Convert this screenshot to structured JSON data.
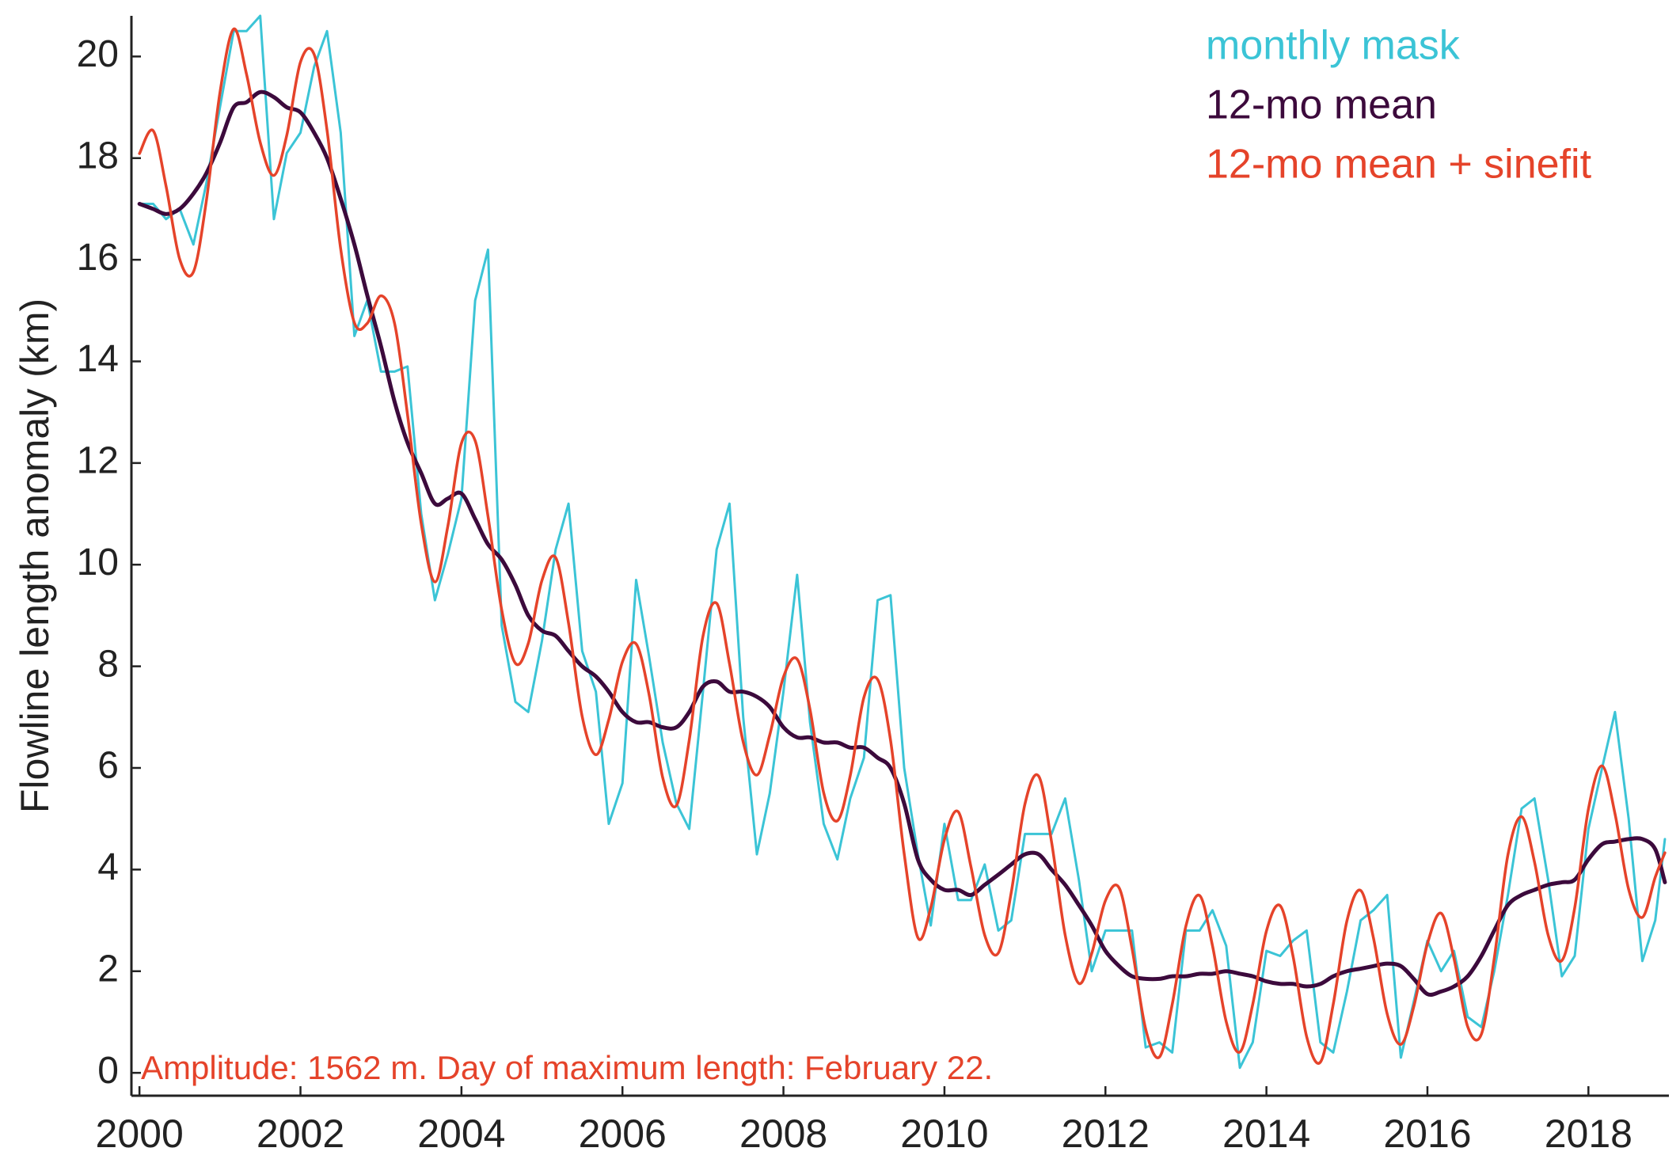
{
  "chart_data": {
    "type": "line",
    "ylabel": "Flowline length anomaly (km)",
    "annotation": "Amplitude: 1562 m. Day of maximum length: February 22.",
    "annotation_color": "#e5432a",
    "legend": "upper right",
    "grid": false,
    "xlim": [
      1999.9,
      2019.0
    ],
    "ylim": [
      -0.45,
      20.8
    ],
    "xticks": [
      2000,
      2002,
      2004,
      2006,
      2008,
      2010,
      2012,
      2014,
      2016,
      2018
    ],
    "yticks": [
      0,
      2,
      4,
      6,
      8,
      10,
      12,
      14,
      16,
      18,
      20
    ],
    "x": [
      2000,
      2000.17,
      2000.33,
      2000.5,
      2000.67,
      2000.83,
      2001,
      2001.17,
      2001.33,
      2001.5,
      2001.67,
      2001.83,
      2002,
      2002.17,
      2002.33,
      2002.5,
      2002.67,
      2002.83,
      2003,
      2003.17,
      2003.33,
      2003.5,
      2003.67,
      2003.83,
      2004,
      2004.17,
      2004.33,
      2004.5,
      2004.67,
      2004.83,
      2005,
      2005.17,
      2005.33,
      2005.5,
      2005.67,
      2005.83,
      2006,
      2006.17,
      2006.33,
      2006.5,
      2006.67,
      2006.83,
      2007,
      2007.17,
      2007.33,
      2007.5,
      2007.67,
      2007.83,
      2008,
      2008.17,
      2008.33,
      2008.5,
      2008.67,
      2008.83,
      2009,
      2009.17,
      2009.33,
      2009.5,
      2009.67,
      2009.83,
      2010,
      2010.17,
      2010.33,
      2010.5,
      2010.67,
      2010.83,
      2011,
      2011.17,
      2011.33,
      2011.5,
      2011.67,
      2011.83,
      2012,
      2012.17,
      2012.33,
      2012.5,
      2012.67,
      2012.83,
      2013,
      2013.17,
      2013.33,
      2013.5,
      2013.67,
      2013.83,
      2014,
      2014.17,
      2014.33,
      2014.5,
      2014.67,
      2014.83,
      2015,
      2015.17,
      2015.33,
      2015.5,
      2015.67,
      2015.83,
      2016,
      2016.17,
      2016.33,
      2016.5,
      2016.67,
      2016.83,
      2017,
      2017.17,
      2017.33,
      2017.5,
      2017.67,
      2017.83,
      2018,
      2018.17,
      2018.33,
      2018.5,
      2018.67,
      2018.83,
      2018.95
    ],
    "series": [
      {
        "name": "monthly mask",
        "color": "#3bc4d6",
        "width": 3,
        "smooth": false,
        "values": [
          17.1,
          17.1,
          16.8,
          17.0,
          16.3,
          17.5,
          19.0,
          20.5,
          20.5,
          20.8,
          16.8,
          18.1,
          18.5,
          19.8,
          20.5,
          18.5,
          14.5,
          15.2,
          13.8,
          13.8,
          13.9,
          11.0,
          9.3,
          10.2,
          11.3,
          15.2,
          16.2,
          8.8,
          7.3,
          7.1,
          8.5,
          10.3,
          11.2,
          8.3,
          7.5,
          4.9,
          5.7,
          9.7,
          8.2,
          6.5,
          5.3,
          4.8,
          7.5,
          10.3,
          11.2,
          7.0,
          4.3,
          5.5,
          7.5,
          9.8,
          6.9,
          4.9,
          4.2,
          5.4,
          6.2,
          9.3,
          9.4,
          6.0,
          4.3,
          2.9,
          4.9,
          3.4,
          3.4,
          4.1,
          2.8,
          3.0,
          4.7,
          4.7,
          4.7,
          5.4,
          3.8,
          2.0,
          2.8,
          2.8,
          2.8,
          0.5,
          0.6,
          0.4,
          2.8,
          2.8,
          3.2,
          2.5,
          0.1,
          0.6,
          2.4,
          2.3,
          2.6,
          2.8,
          0.6,
          0.4,
          1.6,
          3.0,
          3.2,
          3.5,
          0.3,
          1.4,
          2.6,
          2.0,
          2.4,
          1.1,
          0.9,
          2.0,
          3.5,
          5.2,
          5.4,
          3.8,
          1.9,
          2.3,
          4.8,
          6.0,
          7.1,
          5.0,
          2.2,
          3.0,
          4.6
        ]
      },
      {
        "name": "12-mo mean",
        "color": "#3c0a3c",
        "width": 5,
        "smooth": true,
        "values": [
          17.1,
          17.0,
          16.9,
          17.0,
          17.3,
          17.7,
          18.3,
          19.0,
          19.1,
          19.3,
          19.2,
          19.0,
          18.9,
          18.5,
          18.0,
          17.2,
          16.3,
          15.3,
          14.3,
          13.2,
          12.4,
          11.8,
          11.2,
          11.3,
          11.4,
          10.9,
          10.4,
          10.1,
          9.6,
          9.0,
          8.7,
          8.6,
          8.3,
          8.0,
          7.8,
          7.5,
          7.1,
          6.9,
          6.9,
          6.8,
          6.8,
          7.1,
          7.6,
          7.7,
          7.5,
          7.5,
          7.4,
          7.2,
          6.8,
          6.6,
          6.6,
          6.5,
          6.5,
          6.4,
          6.4,
          6.2,
          6.0,
          5.3,
          4.2,
          3.8,
          3.6,
          3.6,
          3.5,
          3.7,
          3.9,
          4.1,
          4.3,
          4.3,
          4.0,
          3.7,
          3.3,
          2.9,
          2.4,
          2.1,
          1.9,
          1.85,
          1.85,
          1.9,
          1.9,
          1.95,
          1.95,
          2.0,
          1.95,
          1.9,
          1.8,
          1.75,
          1.75,
          1.7,
          1.75,
          1.9,
          2.0,
          2.05,
          2.1,
          2.15,
          2.1,
          1.85,
          1.55,
          1.6,
          1.7,
          1.9,
          2.3,
          2.8,
          3.3,
          3.5,
          3.6,
          3.7,
          3.75,
          3.8,
          4.2,
          4.5,
          4.55,
          4.6,
          4.6,
          4.4,
          3.75
        ]
      },
      {
        "name": "12-mo mean + sinefit",
        "color": "#e5432a",
        "width": 3.5,
        "smooth": true,
        "values": [
          18.09,
          18.54,
          17.45,
          16.01,
          15.76,
          17.15,
          19.29,
          20.54,
          19.65,
          18.31,
          17.66,
          18.45,
          19.89,
          20.04,
          18.55,
          16.21,
          14.76,
          14.75,
          15.29,
          14.74,
          12.95,
          10.81,
          9.66,
          10.75,
          12.39,
          12.44,
          10.95,
          9.11,
          8.06,
          8.45,
          9.69,
          10.14,
          8.85,
          7.01,
          6.26,
          6.95,
          8.09,
          8.44,
          7.45,
          5.81,
          5.26,
          6.55,
          8.59,
          9.24,
          8.05,
          6.51,
          5.86,
          6.65,
          7.79,
          8.14,
          7.15,
          5.51,
          4.96,
          5.85,
          7.39,
          7.74,
          6.55,
          4.31,
          2.66,
          3.25,
          4.59,
          5.14,
          4.05,
          2.71,
          2.36,
          3.55,
          5.29,
          5.84,
          4.55,
          2.71,
          1.76,
          2.35,
          3.39,
          3.64,
          2.45,
          0.86,
          0.31,
          1.35,
          2.89,
          3.49,
          2.5,
          1.01,
          0.41,
          1.35,
          2.79,
          3.29,
          2.3,
          0.71,
          0.21,
          1.35,
          2.99,
          3.59,
          2.65,
          1.16,
          0.56,
          1.3,
          2.54,
          3.14,
          2.25,
          0.91,
          0.76,
          2.25,
          4.29,
          5.04,
          4.15,
          2.71,
          2.21,
          3.25,
          5.19,
          6.04,
          5.1,
          3.61,
          3.06,
          3.85,
          4.33
        ]
      }
    ]
  }
}
